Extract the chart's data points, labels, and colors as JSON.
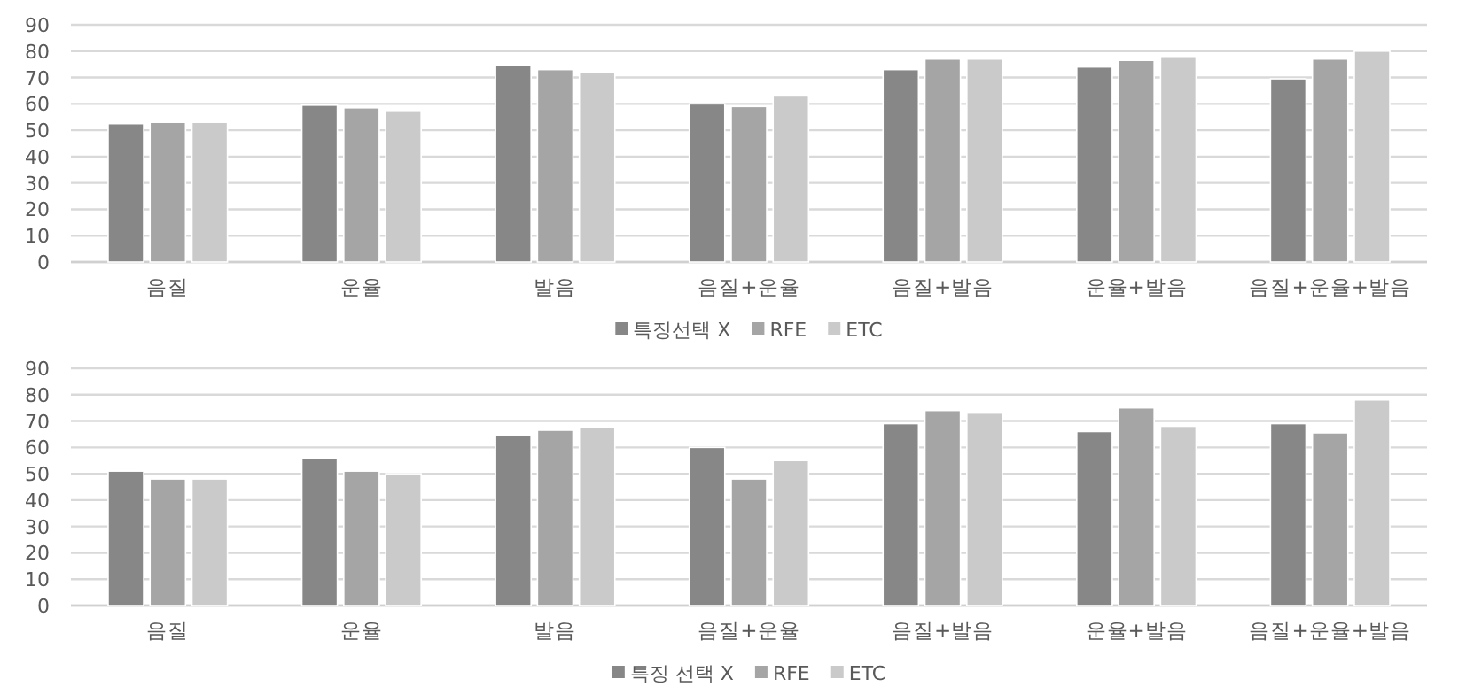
{
  "chart_data": [
    {
      "type": "bar",
      "categories": [
        "음질",
        "운율",
        "발음",
        "음질+운율",
        "음질+발음",
        "운율+발음",
        "음질+운율+발음"
      ],
      "ylim": [
        0,
        90
      ],
      "yticks": [
        0,
        10,
        20,
        30,
        40,
        50,
        60,
        70,
        80,
        90
      ],
      "grid": "y",
      "legend": "bottom",
      "series": [
        {
          "name": "특징선택 X",
          "color": "#878787",
          "values": [
            52.5,
            59.5,
            74.5,
            60,
            73,
            74,
            69.5
          ]
        },
        {
          "name": "RFE",
          "color": "#a5a5a5",
          "values": [
            53,
            58.5,
            73,
            59,
            77,
            76.5,
            77
          ]
        },
        {
          "name": "ETC",
          "color": "#cacaca",
          "values": [
            53,
            57.5,
            72,
            63,
            77,
            78,
            80
          ]
        }
      ]
    },
    {
      "type": "bar",
      "categories": [
        "음질",
        "운율",
        "발음",
        "음질+운율",
        "음질+발음",
        "운율+발음",
        "음질+운율+발음"
      ],
      "ylim": [
        0,
        90
      ],
      "yticks": [
        0,
        10,
        20,
        30,
        40,
        50,
        60,
        70,
        80,
        90
      ],
      "grid": "y",
      "legend": "bottom",
      "series": [
        {
          "name": "특징 선택 X",
          "color": "#878787",
          "values": [
            51,
            56,
            64.5,
            60,
            69,
            66,
            69
          ]
        },
        {
          "name": "RFE",
          "color": "#a5a5a5",
          "values": [
            48,
            51,
            66.5,
            48,
            74,
            75,
            65.5
          ]
        },
        {
          "name": "ETC",
          "color": "#cacaca",
          "values": [
            48,
            50,
            67.5,
            55,
            73,
            68,
            78
          ]
        }
      ]
    }
  ]
}
